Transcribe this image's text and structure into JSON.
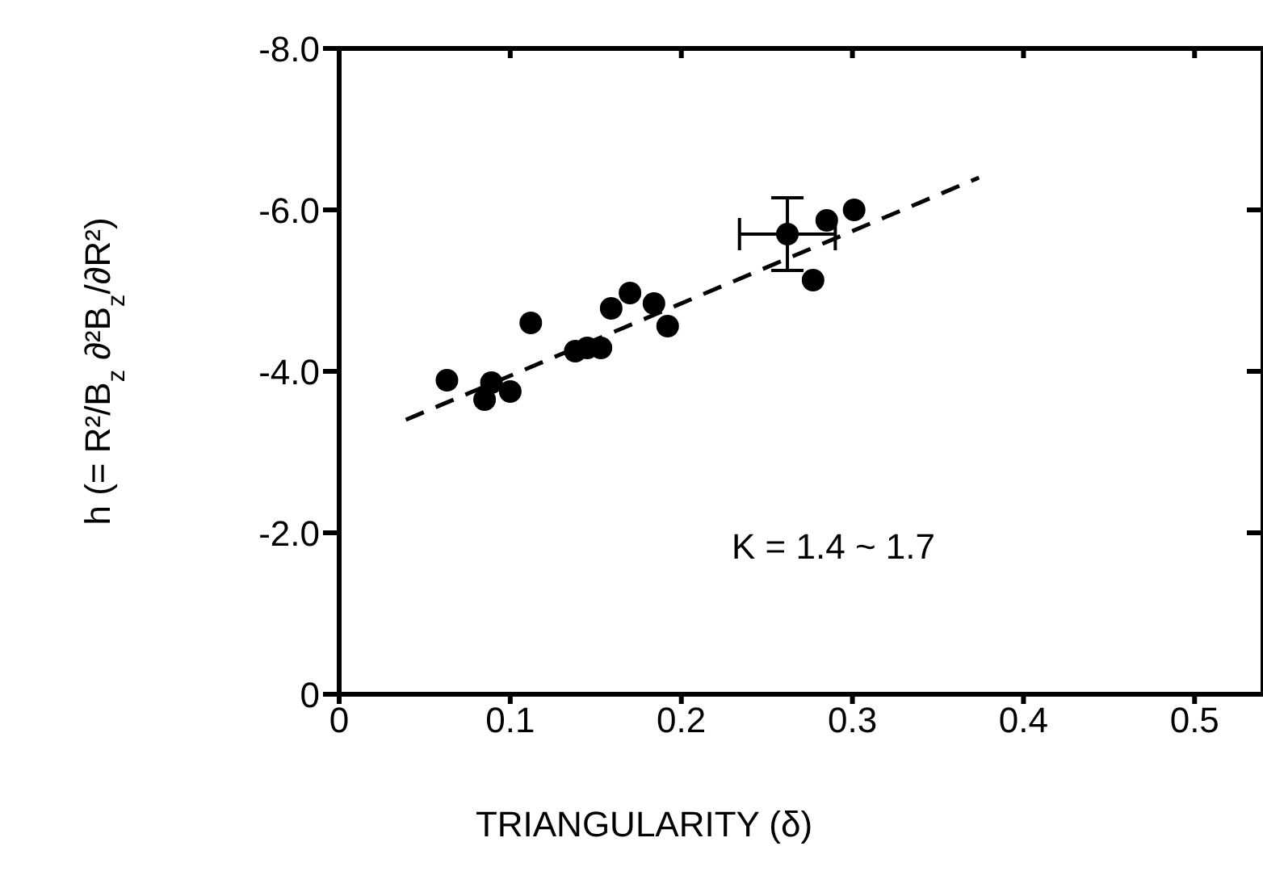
{
  "chart_data": {
    "type": "scatter",
    "xlabel": "TRIANGULARITY (δ)",
    "ylabel": "h (= R²/B$_{z}$ ∂²B$_{z}$/∂R²)",
    "annotations": [
      "K = 1.4 ~ 1.7"
    ],
    "xlim": [
      0,
      0.54
    ],
    "xticks": [
      0,
      0.1,
      0.2,
      0.3,
      0.4,
      0.5
    ],
    "ylim": [
      0,
      -8
    ],
    "yticks": [
      {
        "value": 0,
        "label": "0"
      },
      {
        "value": -2,
        "label": "-2.0"
      },
      {
        "value": -4,
        "label": "-4.0"
      },
      {
        "value": -6,
        "label": "-6.0"
      },
      {
        "value": -8,
        "label": "-8.0"
      }
    ],
    "grid": false,
    "legend": false,
    "marker": "circle",
    "series": [
      {
        "color": "#000000",
        "x": [
          0.063,
          0.085,
          0.089,
          0.1,
          0.112,
          0.138,
          0.145,
          0.153,
          0.159,
          0.17,
          0.184,
          0.192,
          0.262,
          0.277,
          0.285,
          0.301
        ],
        "values": [
          -3.89,
          -3.65,
          -3.86,
          -3.75,
          -4.6,
          -4.25,
          -4.29,
          -4.29,
          -4.78,
          -4.97,
          -4.84,
          -4.56,
          -5.7,
          -5.13,
          -5.87,
          -6.0
        ],
        "errors": [
          null,
          null,
          null,
          null,
          null,
          null,
          null,
          null,
          null,
          null,
          null,
          null,
          0.45,
          null,
          null,
          null
        ],
        "xerrors": [
          null,
          null,
          null,
          null,
          null,
          null,
          null,
          null,
          null,
          null,
          null,
          null,
          0.028,
          null,
          null,
          null
        ]
      },
      {
        "type": "line",
        "color": "#000000",
        "line_style": "dashed",
        "marker": "none",
        "x": [
          0.039,
          0.374
        ],
        "values": [
          -3.4,
          -6.4
        ]
      }
    ]
  }
}
